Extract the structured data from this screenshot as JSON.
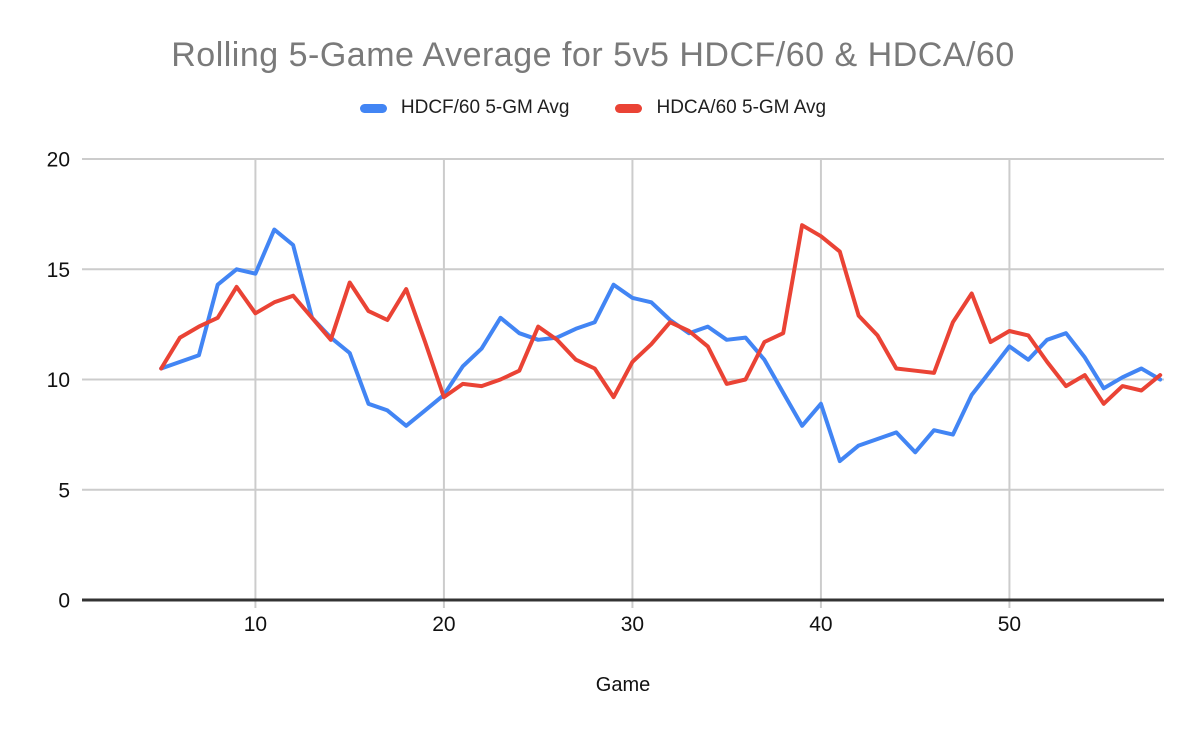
{
  "header": {
    "title": "Rolling 5-Game Average for 5v5 HDCF/60 & HDCA/60",
    "title_color": "#7a7a7a"
  },
  "legend": {
    "items": [
      {
        "label": "HDCF/60 5-GM Avg",
        "color": "#4285F4"
      },
      {
        "label": "HDCA/60 5-GM Avg",
        "color": "#EA4335"
      }
    ]
  },
  "chart_data": {
    "type": "line",
    "title": "Rolling 5-Game Average for 5v5 HDCF/60 & HDCA/60",
    "xlabel": "Game",
    "ylabel": "",
    "x": [
      5,
      6,
      7,
      8,
      9,
      10,
      11,
      12,
      13,
      14,
      15,
      16,
      17,
      18,
      19,
      20,
      21,
      22,
      23,
      24,
      25,
      26,
      27,
      28,
      29,
      30,
      31,
      32,
      33,
      34,
      35,
      36,
      37,
      38,
      39,
      40,
      41,
      42,
      43,
      44,
      45,
      46,
      47,
      48,
      49,
      50,
      51,
      52,
      53,
      54,
      55,
      56,
      57,
      58
    ],
    "series": [
      {
        "name": "HDCF/60 5-GM Avg",
        "color": "#4285F4",
        "values": [
          10.5,
          10.8,
          11.1,
          14.3,
          15.0,
          14.8,
          16.8,
          16.1,
          12.8,
          11.9,
          11.2,
          8.9,
          8.6,
          7.9,
          8.6,
          9.3,
          10.6,
          11.4,
          12.8,
          12.1,
          11.8,
          11.9,
          12.3,
          12.6,
          14.3,
          13.7,
          13.5,
          12.7,
          12.1,
          12.4,
          11.8,
          11.9,
          10.9,
          9.4,
          7.9,
          8.9,
          6.3,
          7.0,
          7.3,
          7.6,
          6.7,
          7.7,
          7.5,
          9.3,
          10.4,
          11.5,
          10.9,
          11.8,
          12.1,
          11.0,
          9.6,
          10.1,
          10.5,
          10.0
        ]
      },
      {
        "name": "HDCA/60 5-GM Avg",
        "color": "#EA4335",
        "values": [
          10.5,
          11.9,
          12.4,
          12.8,
          14.2,
          13.0,
          13.5,
          13.8,
          12.8,
          11.8,
          14.4,
          13.1,
          12.7,
          14.1,
          11.7,
          9.2,
          9.8,
          9.7,
          10.0,
          10.4,
          12.4,
          11.8,
          10.9,
          10.5,
          9.2,
          10.8,
          11.6,
          12.6,
          12.2,
          11.5,
          9.8,
          10.0,
          11.7,
          12.1,
          17.0,
          16.5,
          15.8,
          12.9,
          12.0,
          10.5,
          10.4,
          10.3,
          12.6,
          13.9,
          11.7,
          12.2,
          12.0,
          10.8,
          9.7,
          10.2,
          8.9,
          9.7,
          9.5,
          10.2
        ]
      }
    ],
    "xlim": [
      0.8,
      58.2
    ],
    "ylim": [
      0,
      20
    ],
    "x_ticks": [
      10,
      20,
      30,
      40,
      50
    ],
    "y_ticks": [
      0,
      5,
      10,
      15,
      20
    ],
    "grid": true,
    "legend_position": "top",
    "colors": {
      "grid": "#cccccc",
      "axis": "#333333",
      "tick_label": "#111111",
      "axis_label": "#111111"
    }
  }
}
